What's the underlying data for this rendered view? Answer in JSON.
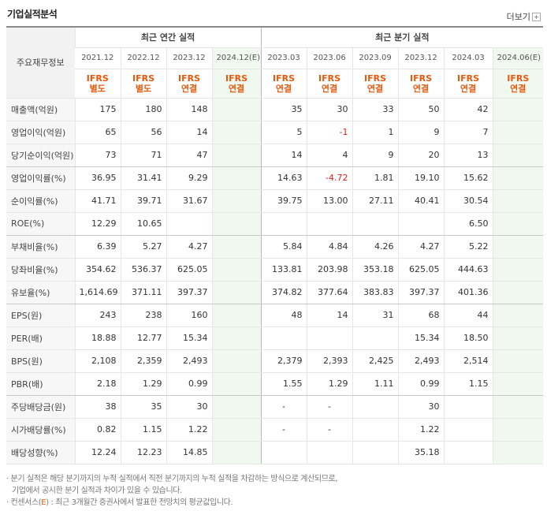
{
  "title": "기업실적분석",
  "more_label": "더보기",
  "more_icon": "plus-box-icon",
  "header": {
    "row_label": "주요재무정보",
    "annual_title": "최근 연간 실적",
    "quarter_title": "최근 분기 실적",
    "annual_periods": [
      "2021.12",
      "2022.12",
      "2023.12",
      "2024.12(E)"
    ],
    "quarter_periods": [
      "2023.03",
      "2023.06",
      "2023.09",
      "2023.12",
      "2024.03",
      "2024.06(E)"
    ],
    "annual_types": [
      [
        "IFRS",
        "별도"
      ],
      [
        "IFRS",
        "별도"
      ],
      [
        "IFRS",
        "연결"
      ],
      [
        "IFRS",
        "연결"
      ]
    ],
    "quarter_types": [
      [
        "IFRS",
        "연결"
      ],
      [
        "IFRS",
        "연결"
      ],
      [
        "IFRS",
        "연결"
      ],
      [
        "IFRS",
        "연결"
      ],
      [
        "IFRS",
        "연결"
      ],
      [
        "IFRS",
        "연결"
      ]
    ]
  },
  "rows": [
    {
      "label": "매출액(억원)",
      "annual": [
        "175",
        "180",
        "148",
        ""
      ],
      "quarter": [
        "35",
        "30",
        "33",
        "50",
        "42",
        ""
      ]
    },
    {
      "label": "영업이익(억원)",
      "annual": [
        "65",
        "56",
        "14",
        ""
      ],
      "quarter": [
        "5",
        "-1",
        "1",
        "9",
        "7",
        ""
      ]
    },
    {
      "label": "당기순이익(억원)",
      "annual": [
        "73",
        "71",
        "47",
        ""
      ],
      "quarter": [
        "14",
        "4",
        "9",
        "20",
        "13",
        ""
      ]
    },
    {
      "label": "영업이익률(%)",
      "annual": [
        "36.95",
        "31.41",
        "9.29",
        ""
      ],
      "quarter": [
        "14.63",
        "-4.72",
        "1.81",
        "19.10",
        "15.62",
        ""
      ]
    },
    {
      "label": "순이익률(%)",
      "annual": [
        "41.71",
        "39.71",
        "31.67",
        ""
      ],
      "quarter": [
        "39.75",
        "13.00",
        "27.11",
        "40.41",
        "30.54",
        ""
      ]
    },
    {
      "label": "ROE(%)",
      "annual": [
        "12.29",
        "10.65",
        "",
        ""
      ],
      "quarter": [
        "",
        "",
        "",
        "",
        "6.50",
        ""
      ]
    },
    {
      "label": "부채비율(%)",
      "annual": [
        "6.39",
        "5.27",
        "4.27",
        ""
      ],
      "quarter": [
        "5.84",
        "4.84",
        "4.26",
        "4.27",
        "5.22",
        ""
      ]
    },
    {
      "label": "당좌비율(%)",
      "annual": [
        "354.62",
        "536.37",
        "625.05",
        ""
      ],
      "quarter": [
        "133.81",
        "203.98",
        "353.18",
        "625.05",
        "444.63",
        ""
      ]
    },
    {
      "label": "유보율(%)",
      "annual": [
        "1,614.69",
        "371.11",
        "397.37",
        ""
      ],
      "quarter": [
        "374.82",
        "377.64",
        "383.83",
        "397.37",
        "401.36",
        ""
      ]
    },
    {
      "label": "EPS(원)",
      "annual": [
        "243",
        "238",
        "160",
        ""
      ],
      "quarter": [
        "48",
        "14",
        "31",
        "68",
        "44",
        ""
      ]
    },
    {
      "label": "PER(배)",
      "annual": [
        "18.88",
        "12.77",
        "15.34",
        ""
      ],
      "quarter": [
        "",
        "",
        "",
        "15.34",
        "18.50",
        ""
      ]
    },
    {
      "label": "BPS(원)",
      "annual": [
        "2,108",
        "2,359",
        "2,493",
        ""
      ],
      "quarter": [
        "2,379",
        "2,393",
        "2,425",
        "2,493",
        "2,514",
        ""
      ]
    },
    {
      "label": "PBR(배)",
      "annual": [
        "2.18",
        "1.29",
        "0.99",
        ""
      ],
      "quarter": [
        "1.55",
        "1.29",
        "1.11",
        "0.99",
        "1.15",
        ""
      ]
    },
    {
      "label": "주당배당금(원)",
      "annual": [
        "38",
        "35",
        "30",
        ""
      ],
      "quarter": [
        "-",
        "-",
        "",
        "30",
        "",
        ""
      ]
    },
    {
      "label": "시가배당률(%)",
      "annual": [
        "0.82",
        "1.15",
        "1.22",
        ""
      ],
      "quarter": [
        "-",
        "-",
        "",
        "1.22",
        "",
        ""
      ]
    },
    {
      "label": "배당성향(%)",
      "annual": [
        "12.24",
        "12.23",
        "14.85",
        ""
      ],
      "quarter": [
        "",
        "",
        "",
        "35.18",
        "",
        ""
      ]
    }
  ],
  "notes": {
    "line1": "· 분기 실적은 해당 분기까지의 누적 실적에서 직전 분기까지의 누적 실적을 차감하는 방식으로 계산되므로,",
    "line2": "기업에서 공시한 분기 실적과 차이가 있을 수 있습니다.",
    "line3_prefix": "· 컨센서스(",
    "line3_mark": "E",
    "line3_suffix": ") : 최근 3개월간 증권사에서 발표한 전망치의 평균값입니다."
  },
  "colors": {
    "negative": "#e41b1b",
    "ifrs": "#e8590c",
    "estimate_bg": "#f0f8f0"
  }
}
